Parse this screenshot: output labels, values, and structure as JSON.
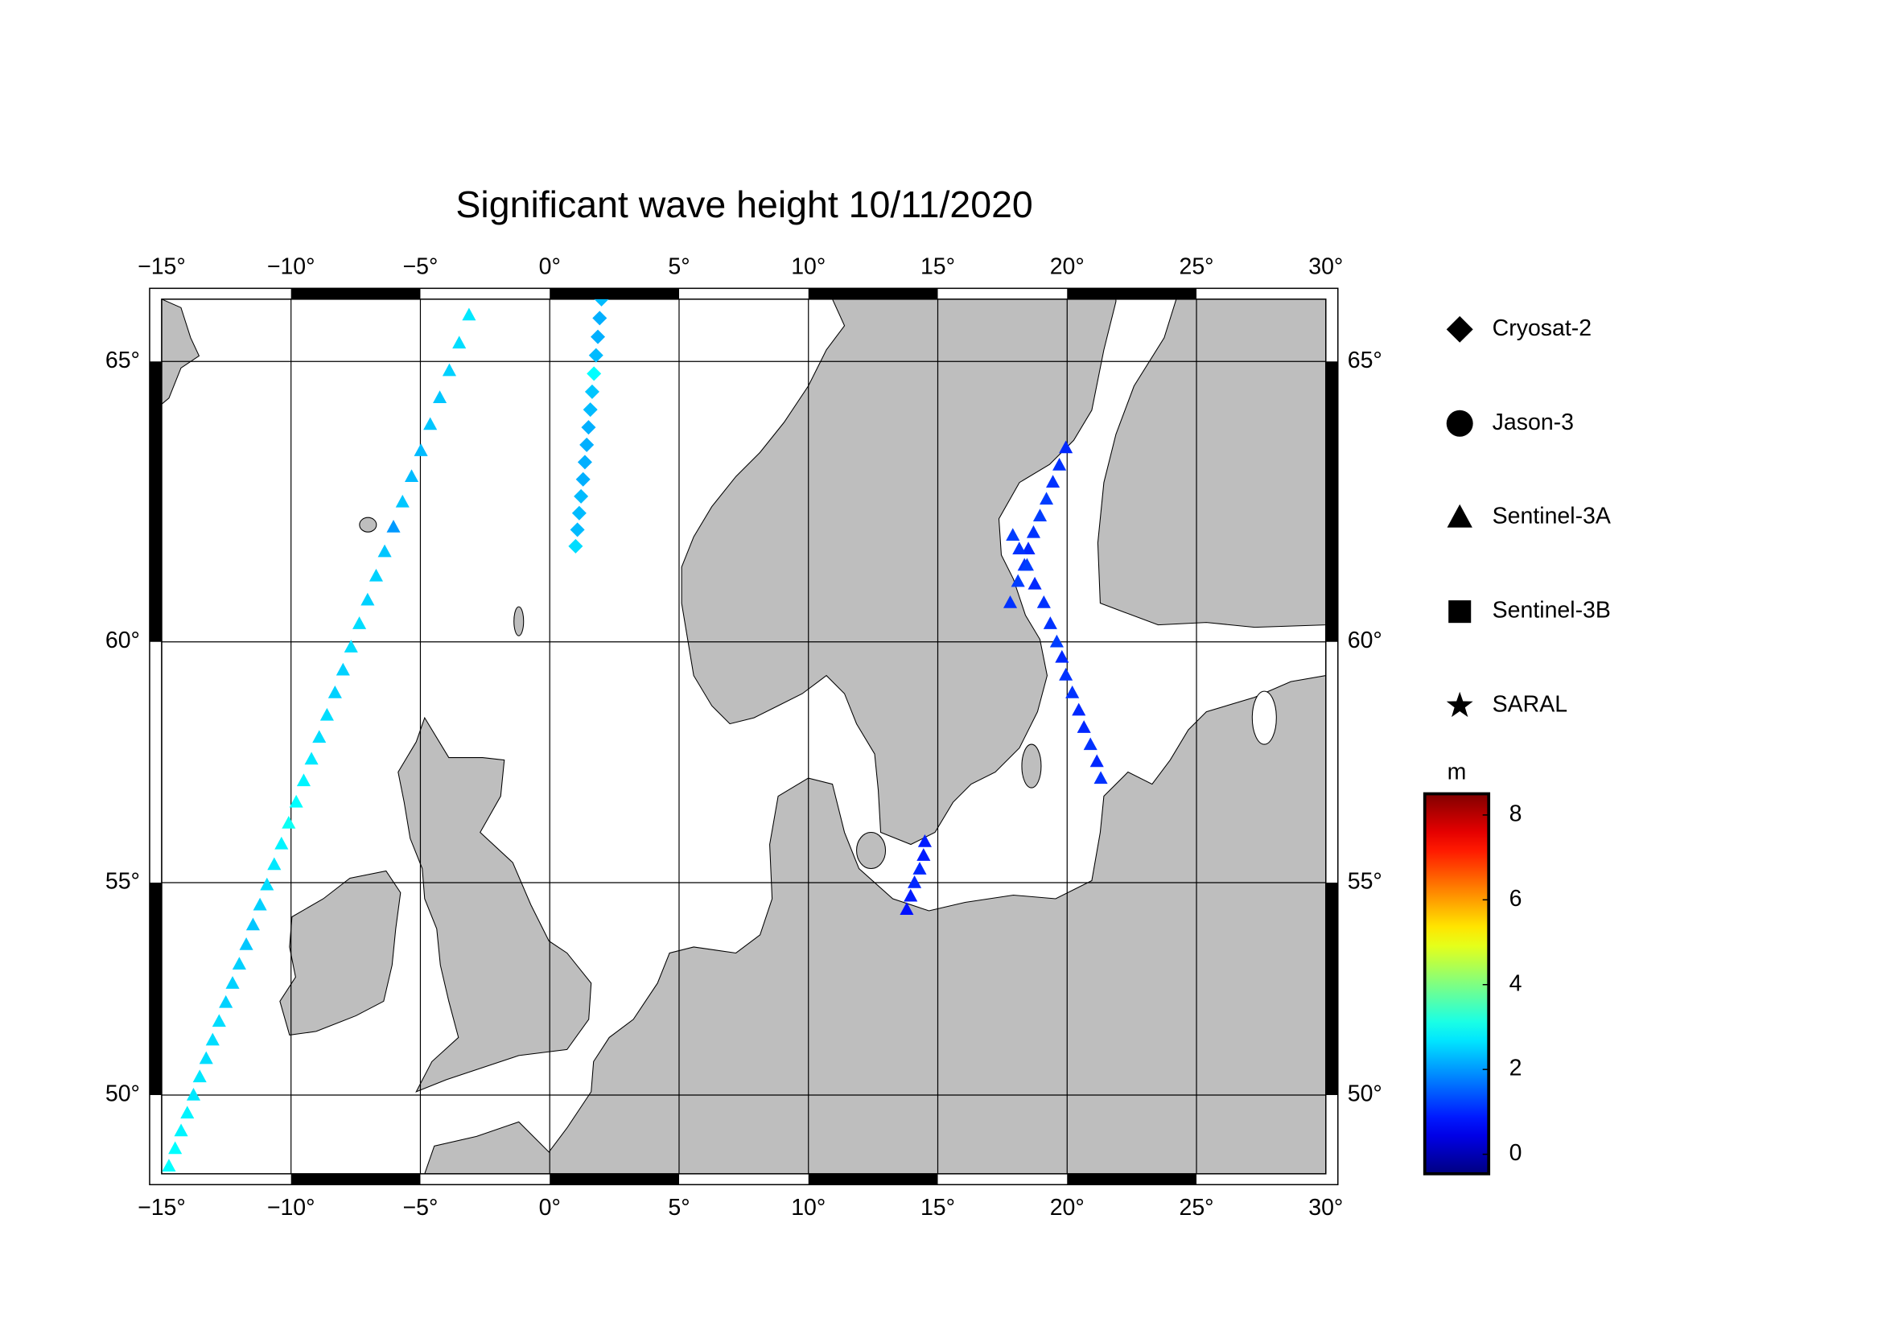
{
  "chart_data": {
    "type": "scatter",
    "title": "Significant wave height 10/11/2020",
    "projection": "mercator",
    "xlim": [
      -15,
      30
    ],
    "ylim": [
      48,
      66
    ],
    "xticks": [
      {
        "value": -15,
        "label": "−15°"
      },
      {
        "value": -10,
        "label": "−10°"
      },
      {
        "value": -5,
        "label": "−5°"
      },
      {
        "value": 0,
        "label": "0°"
      },
      {
        "value": 5,
        "label": "5°"
      },
      {
        "value": 10,
        "label": "10°"
      },
      {
        "value": 15,
        "label": "15°"
      },
      {
        "value": 20,
        "label": "20°"
      },
      {
        "value": 25,
        "label": "25°"
      },
      {
        "value": 30,
        "label": "30°"
      }
    ],
    "yticks": [
      {
        "value": 50,
        "label": "50°"
      },
      {
        "value": 55,
        "label": "55°"
      },
      {
        "value": 60,
        "label": "60°"
      },
      {
        "value": 65,
        "label": "65°"
      }
    ],
    "grid": true,
    "colorbar": {
      "label": "m",
      "colormap": "jet",
      "clim": [
        -0.46,
        8.5
      ],
      "ticks": [
        0,
        2,
        4,
        6,
        8
      ]
    },
    "series": [
      {
        "name": "Cryosat-2",
        "marker": "diamond",
        "x": [
          1.0,
          1.07,
          1.14,
          1.21,
          1.29,
          1.36,
          1.43,
          1.5,
          1.57,
          1.64,
          1.71,
          1.79,
          1.86,
          1.93,
          2.0
        ],
        "y": [
          61.8,
          62.1,
          62.4,
          62.7,
          63.0,
          63.3,
          63.6,
          63.9,
          64.2,
          64.5,
          64.8,
          65.1,
          65.4,
          65.7,
          66.0
        ],
        "values": [
          2.6,
          2.3,
          2.3,
          2.3,
          2.2,
          2.2,
          2.2,
          2.2,
          2.3,
          2.4,
          2.9,
          2.3,
          2.2,
          2.2,
          2.3
        ]
      },
      {
        "name": "Jason-3",
        "marker": "circle",
        "x": [],
        "y": [],
        "values": []
      },
      {
        "name": "Sentinel-3A",
        "marker": "triangle",
        "x": [
          -14.72,
          -14.48,
          -14.25,
          -14.01,
          -13.77,
          -13.53,
          -13.28,
          -13.03,
          -12.78,
          -12.52,
          -12.26,
          -12.0,
          -11.73,
          -11.47,
          -11.2,
          -10.93,
          -10.65,
          -10.37,
          -10.09,
          -9.8,
          -9.51,
          -9.21,
          -8.91,
          -8.61,
          -8.3,
          -7.99,
          -7.68,
          -7.36,
          -7.04,
          -6.71,
          -6.38,
          -6.04,
          -5.69,
          -5.34,
          -4.98,
          -4.62,
          -4.25,
          -3.88,
          -3.5,
          -3.12,
          19.95,
          19.7,
          19.45,
          19.2,
          18.95,
          18.7,
          18.5,
          18.35,
          18.1,
          17.8,
          17.9,
          18.15,
          18.45,
          18.75,
          19.1,
          19.35,
          19.6,
          19.8,
          19.95,
          20.2,
          20.45,
          20.65,
          20.9,
          21.15,
          21.3,
          14.5,
          14.45,
          14.3,
          14.1,
          13.95,
          13.8
        ],
        "y": [
          48.2,
          48.65,
          49.1,
          49.55,
          50.0,
          50.45,
          50.9,
          51.35,
          51.8,
          52.25,
          52.7,
          53.15,
          53.6,
          54.05,
          54.5,
          54.95,
          55.4,
          55.85,
          56.3,
          56.75,
          57.2,
          57.65,
          58.1,
          58.55,
          59.0,
          59.45,
          59.9,
          60.35,
          60.8,
          61.25,
          61.7,
          62.15,
          62.6,
          63.05,
          63.5,
          63.95,
          64.4,
          64.85,
          65.3,
          65.75,
          63.55,
          63.25,
          62.95,
          62.65,
          62.35,
          62.05,
          61.75,
          61.45,
          61.15,
          60.75,
          62.0,
          61.75,
          61.45,
          61.1,
          60.75,
          60.35,
          60.0,
          59.7,
          59.35,
          59.0,
          58.65,
          58.3,
          57.95,
          57.6,
          57.25,
          55.9,
          55.6,
          55.3,
          55.0,
          54.7,
          54.4
        ],
        "values": [
          2.9,
          2.9,
          2.8,
          2.8,
          2.7,
          2.7,
          2.6,
          2.6,
          2.6,
          2.5,
          2.5,
          2.5,
          2.4,
          2.4,
          2.5,
          2.6,
          2.7,
          2.8,
          3.0,
          2.9,
          2.8,
          2.7,
          2.6,
          2.6,
          2.5,
          2.5,
          2.6,
          2.6,
          2.5,
          2.5,
          2.4,
          2.0,
          2.4,
          2.3,
          2.3,
          2.4,
          2.4,
          2.5,
          2.6,
          2.7,
          1.0,
          1.1,
          1.1,
          1.2,
          1.2,
          1.1,
          1.0,
          1.1,
          1.2,
          1.1,
          1.2,
          1.1,
          1.2,
          1.0,
          1.1,
          1.1,
          1.2,
          1.0,
          1.1,
          1.1,
          1.0,
          1.0,
          1.1,
          1.0,
          1.1,
          0.9,
          0.9,
          1.0,
          1.0,
          0.9,
          0.8
        ]
      },
      {
        "name": "Sentinel-3B",
        "marker": "square",
        "x": [],
        "y": [],
        "values": []
      },
      {
        "name": "SARAL",
        "marker": "star",
        "x": [],
        "y": [],
        "values": []
      }
    ]
  }
}
